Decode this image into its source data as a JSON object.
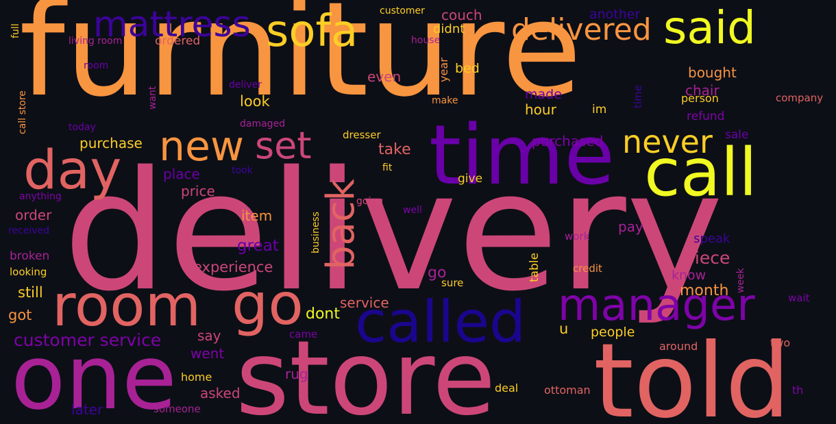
{
  "colors": {
    "background": "#0d0f17",
    "orange": "#f89540",
    "pink": "#cc4778",
    "salmon": "#e16462",
    "purple": "#7e03a8",
    "violet": "#6a00a8",
    "indigo": "#3b049a",
    "deep_blue": "#1a068d",
    "magenta": "#a82296",
    "yellow": "#f0f921",
    "gold": "#fcce25"
  },
  "words": [
    {
      "text": "furniture",
      "color": "#f89540"
    },
    {
      "text": "delivery",
      "color": "#cc4778"
    },
    {
      "text": "time",
      "color": "#6a00a8"
    },
    {
      "text": "call",
      "color": "#f0f921"
    },
    {
      "text": "store",
      "color": "#cc4778"
    },
    {
      "text": "told",
      "color": "#e16462"
    },
    {
      "text": "one",
      "color": "#a82296"
    },
    {
      "text": "room",
      "color": "#e16462"
    },
    {
      "text": "go",
      "color": "#e16462"
    },
    {
      "text": "called",
      "color": "#1a068d"
    },
    {
      "text": "manager",
      "color": "#7e03a8"
    },
    {
      "text": "day",
      "color": "#e16462"
    },
    {
      "text": "new",
      "color": "#f89540"
    },
    {
      "text": "set",
      "color": "#cc4778"
    },
    {
      "text": "back",
      "color": "#e16462"
    },
    {
      "text": "sofa",
      "color": "#fcce25"
    },
    {
      "text": "said",
      "color": "#f0f921"
    },
    {
      "text": "mattress",
      "color": "#3b049a"
    },
    {
      "text": "delivered",
      "color": "#f89540"
    },
    {
      "text": "never",
      "color": "#fcce25"
    },
    {
      "text": "customer service",
      "color": "#7e03a8"
    },
    {
      "text": "experience",
      "color": "#cc4778"
    },
    {
      "text": "piece",
      "color": "#cc4778"
    },
    {
      "text": "month",
      "color": "#f89540"
    },
    {
      "text": "great",
      "color": "#6a00a8"
    },
    {
      "text": "dont",
      "color": "#f0f921"
    },
    {
      "text": "service",
      "color": "#e16462"
    },
    {
      "text": "purchase",
      "color": "#fcce25"
    },
    {
      "text": "purchased",
      "color": "#7e03a8"
    },
    {
      "text": "take",
      "color": "#e16462"
    },
    {
      "text": "place",
      "color": "#6a00a8"
    },
    {
      "text": "price",
      "color": "#cc4778"
    },
    {
      "text": "order",
      "color": "#cc4778"
    },
    {
      "text": "item",
      "color": "#f89540"
    },
    {
      "text": "look",
      "color": "#fcce25"
    },
    {
      "text": "hour",
      "color": "#fcce25"
    },
    {
      "text": "bought",
      "color": "#f89540"
    },
    {
      "text": "chair",
      "color": "#a82296"
    },
    {
      "text": "person",
      "color": "#fcce25"
    },
    {
      "text": "refund",
      "color": "#7e03a8"
    },
    {
      "text": "sale",
      "color": "#6a00a8"
    },
    {
      "text": "made",
      "color": "#6a00a8"
    },
    {
      "text": "im",
      "color": "#fcce25"
    },
    {
      "text": "even",
      "color": "#cc4778"
    },
    {
      "text": "bed",
      "color": "#fcce25"
    },
    {
      "text": "ordered",
      "color": "#e16462"
    },
    {
      "text": "couch",
      "color": "#cc4778"
    },
    {
      "text": "didnt",
      "color": "#fcce25"
    },
    {
      "text": "another",
      "color": "#3b049a"
    },
    {
      "text": "customer",
      "color": "#fcce25"
    },
    {
      "text": "house",
      "color": "#a82296"
    },
    {
      "text": "living room",
      "color": "#a82296"
    },
    {
      "text": "room",
      "color": "#6a00a8"
    },
    {
      "text": "full",
      "color": "#fcce25"
    },
    {
      "text": "call store",
      "color": "#f89540"
    },
    {
      "text": "want",
      "color": "#a82296"
    },
    {
      "text": "deliver",
      "color": "#6a00a8"
    },
    {
      "text": "make",
      "color": "#f89540"
    },
    {
      "text": "year",
      "color": "#f89540"
    },
    {
      "text": "company",
      "color": "#e16462"
    },
    {
      "text": "today",
      "color": "#6a00a8"
    },
    {
      "text": "damaged",
      "color": "#a82296"
    },
    {
      "text": "dresser",
      "color": "#fcce25"
    },
    {
      "text": "fit",
      "color": "#fcce25"
    },
    {
      "text": "took",
      "color": "#3b049a"
    },
    {
      "text": "give",
      "color": "#fcce25"
    },
    {
      "text": "anything",
      "color": "#7e03a8"
    },
    {
      "text": "going",
      "color": "#cc4778"
    },
    {
      "text": "well",
      "color": "#7e03a8"
    },
    {
      "text": "received",
      "color": "#3b049a"
    },
    {
      "text": "business",
      "color": "#fcce25"
    },
    {
      "text": "pay",
      "color": "#a82296"
    },
    {
      "text": "broken",
      "color": "#a82296"
    },
    {
      "text": "looking",
      "color": "#fcce25"
    },
    {
      "text": "speak",
      "color": "#3b049a"
    },
    {
      "text": "work",
      "color": "#a82296"
    },
    {
      "text": "table",
      "color": "#fcce25"
    },
    {
      "text": "credit",
      "color": "#f89540"
    },
    {
      "text": "know",
      "color": "#a82296"
    },
    {
      "text": "week",
      "color": "#a82296"
    },
    {
      "text": "still",
      "color": "#fcce25"
    },
    {
      "text": "go",
      "color": "#a82296"
    },
    {
      "text": "sure",
      "color": "#fcce25"
    },
    {
      "text": "wait",
      "color": "#7e03a8"
    },
    {
      "text": "got",
      "color": "#f89540"
    },
    {
      "text": "say",
      "color": "#cc4778"
    },
    {
      "text": "u",
      "color": "#fcce25"
    },
    {
      "text": "people",
      "color": "#fcce25"
    },
    {
      "text": "went",
      "color": "#7e03a8"
    },
    {
      "text": "came",
      "color": "#7e03a8"
    },
    {
      "text": "around",
      "color": "#e16462"
    },
    {
      "text": "two",
      "color": "#e16462"
    },
    {
      "text": "home",
      "color": "#fcce25"
    },
    {
      "text": "rug",
      "color": "#a82296"
    },
    {
      "text": "asked",
      "color": "#cc4778"
    },
    {
      "text": "deal",
      "color": "#fcce25"
    },
    {
      "text": "ottoman",
      "color": "#e16462"
    },
    {
      "text": "th",
      "color": "#7e03a8"
    },
    {
      "text": "later",
      "color": "#3b049a"
    },
    {
      "text": "someone",
      "color": "#a82296"
    },
    {
      "text": "time",
      "color": "#3b049a"
    }
  ]
}
